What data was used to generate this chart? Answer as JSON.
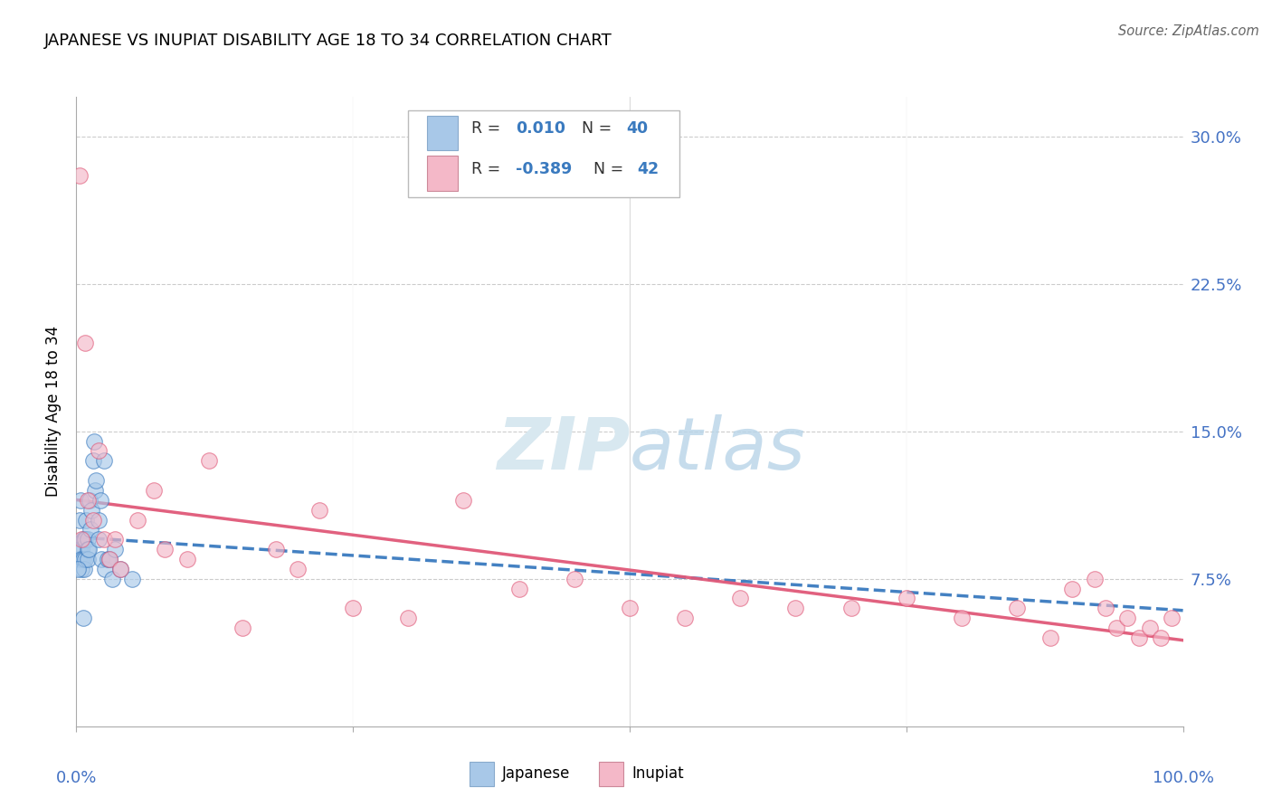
{
  "title": "JAPANESE VS INUPIAT DISABILITY AGE 18 TO 34 CORRELATION CHART",
  "source": "Source: ZipAtlas.com",
  "ylabel": "Disability Age 18 to 34",
  "legend1_R": "0.010",
  "legend1_N": "40",
  "legend2_R": "-0.389",
  "legend2_N": "42",
  "legend_label1": "Japanese",
  "legend_label2": "Inupiat",
  "blue_color": "#a8c8e8",
  "pink_color": "#f4b8c8",
  "blue_line_color": "#3a7abf",
  "pink_line_color": "#e05878",
  "blue_fill_color": "#cce0f5",
  "pink_fill_color": "#fce0e8",
  "watermark_color": "#d8e8f0",
  "ytick_color": "#4472c4",
  "xtick_color": "#4472c4",
  "grid_color": "#cccccc",
  "japanese_x": [
    0.2,
    0.3,
    0.3,
    0.4,
    0.4,
    0.5,
    0.5,
    0.5,
    0.6,
    0.6,
    0.7,
    0.7,
    0.8,
    0.8,
    0.9,
    1.0,
    1.0,
    1.0,
    1.1,
    1.2,
    1.3,
    1.4,
    1.5,
    1.6,
    1.7,
    1.8,
    2.0,
    2.0,
    2.2,
    2.3,
    2.5,
    2.6,
    2.8,
    3.0,
    3.2,
    3.5,
    4.0,
    5.0,
    0.1,
    0.6
  ],
  "japanese_y": [
    8.5,
    10.5,
    9.0,
    11.5,
    8.5,
    9.0,
    8.5,
    8.0,
    9.5,
    8.5,
    9.5,
    8.0,
    9.5,
    8.5,
    10.5,
    9.5,
    9.0,
    8.5,
    9.0,
    11.5,
    10.0,
    11.0,
    13.5,
    14.5,
    12.0,
    12.5,
    10.5,
    9.5,
    11.5,
    8.5,
    13.5,
    8.0,
    8.5,
    8.5,
    7.5,
    9.0,
    8.0,
    7.5,
    8.0,
    5.5
  ],
  "inupiat_x": [
    0.3,
    0.5,
    0.8,
    1.0,
    1.5,
    2.0,
    2.5,
    3.0,
    3.5,
    4.0,
    5.5,
    7.0,
    8.0,
    10.0,
    12.0,
    15.0,
    18.0,
    20.0,
    22.0,
    25.0,
    30.0,
    35.0,
    40.0,
    45.0,
    50.0,
    55.0,
    60.0,
    65.0,
    70.0,
    75.0,
    80.0,
    85.0,
    88.0,
    90.0,
    92.0,
    93.0,
    94.0,
    95.0,
    96.0,
    97.0,
    98.0,
    99.0
  ],
  "inupiat_y": [
    28.0,
    9.5,
    19.5,
    11.5,
    10.5,
    14.0,
    9.5,
    8.5,
    9.5,
    8.0,
    10.5,
    12.0,
    9.0,
    8.5,
    13.5,
    5.0,
    9.0,
    8.0,
    11.0,
    6.0,
    5.5,
    11.5,
    7.0,
    7.5,
    6.0,
    5.5,
    6.5,
    6.0,
    6.0,
    6.5,
    5.5,
    6.0,
    4.5,
    7.0,
    7.5,
    6.0,
    5.0,
    5.5,
    4.5,
    5.0,
    4.5,
    5.5
  ],
  "xlim": [
    0,
    100
  ],
  "ylim": [
    0,
    32
  ],
  "ytick_vals": [
    0,
    7.5,
    15.0,
    22.5,
    30.0
  ],
  "ytick_labels": [
    "",
    "7.5%",
    "15.0%",
    "22.5%",
    "30.0%"
  ]
}
